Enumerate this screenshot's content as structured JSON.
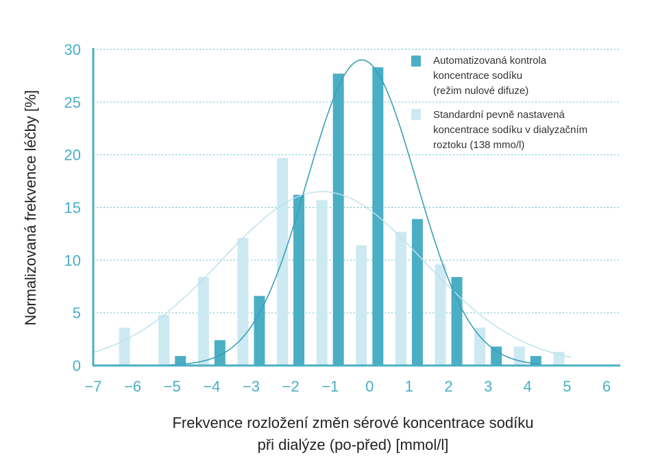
{
  "chart_data": {
    "type": "bar",
    "title": "",
    "xlabel_lines": [
      "Frekvence rozložení změn sérové koncentrace sodíku",
      "při dialýze (po-před) [mmol/l]"
    ],
    "ylabel": "Normalizovaná frekvence léčby [%]",
    "xlim": [
      -7,
      6
    ],
    "ylim": [
      0,
      30
    ],
    "x_ticks": [
      "−7",
      "−6",
      "−5",
      "−4",
      "−3",
      "−2",
      "−1",
      "0",
      "1",
      "2",
      "3",
      "4",
      "5",
      "6"
    ],
    "y_ticks": [
      "0",
      "5",
      "10",
      "15",
      "20",
      "25",
      "30"
    ],
    "grid": "horizontal dotted",
    "legend_position": "top-right",
    "series": [
      {
        "name_lines": [
          "Automatizovaná kontrola",
          "koncentrace sodíku",
          "(režim nulové difuze)"
        ],
        "color": "#4aaec4",
        "x": [
          -5,
          -4,
          -3,
          -2,
          -1,
          0,
          1,
          2,
          3,
          4
        ],
        "values": [
          0.9,
          2.4,
          6.6,
          16.2,
          27.7,
          28.3,
          13.9,
          8.4,
          1.8,
          0.9
        ],
        "fit_curve": {
          "mean": -0.2,
          "sd": 1.38,
          "peak": 29.0
        }
      },
      {
        "name_lines": [
          "Standardní pevně nastavená",
          "koncentrace sodíku v dialyzačním",
          "roztoku (138 mmo/l)"
        ],
        "color": "#cde9f1",
        "x": [
          -6,
          -5,
          -4,
          -3,
          -2,
          -1,
          0,
          1,
          2,
          3,
          4,
          5
        ],
        "values": [
          3.6,
          4.8,
          8.4,
          12.1,
          19.7,
          15.7,
          11.4,
          12.7,
          9.6,
          3.6,
          1.8,
          1.3
        ],
        "fit_curve": {
          "mean": -1.2,
          "sd": 2.55,
          "peak": 16.5
        }
      }
    ]
  }
}
